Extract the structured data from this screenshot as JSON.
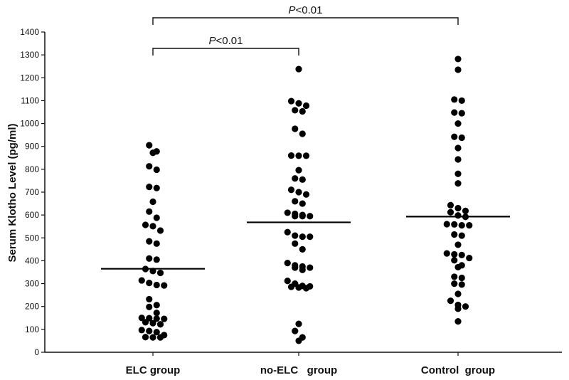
{
  "chart_data": {
    "type": "scatter",
    "ylabel": "Serum Klotho Level (pg/ml)",
    "ylim": [
      0,
      1400
    ],
    "yticks": [
      "0",
      "100",
      "200",
      "300",
      "400",
      "500",
      "600",
      "700",
      "800",
      "900",
      "1000",
      "1100",
      "1200",
      "1300",
      "1400"
    ],
    "categories": [
      "ELC group",
      "no-ELC   group",
      "Control  group"
    ],
    "series": [
      {
        "medians": 365,
        "values": [
          905,
          878,
          872,
          813,
          798,
          723,
          718,
          658,
          615,
          588,
          557,
          551,
          532,
          485,
          475,
          410,
          405,
          364,
          355,
          347,
          314,
          303,
          294,
          292,
          232,
          206,
          198,
          172,
          150,
          149,
          147,
          146,
          131,
          127,
          122,
          97,
          93,
          88,
          75,
          66,
          65,
          65
        ]
      },
      {
        "medians": 568,
        "values": [
          1238,
          1098,
          1088,
          1078,
          1058,
          1053,
          977,
          955,
          860,
          859,
          859,
          796,
          760,
          755,
          710,
          700,
          690,
          660,
          650,
          610,
          605,
          600,
          595,
          595,
          595,
          525,
          510,
          505,
          505,
          475,
          450,
          390,
          380,
          375,
          370,
          370,
          360,
          312,
          300,
          290,
          288,
          286,
          283,
          280,
          124,
          93,
          65,
          50
        ]
      },
      {
        "medians": 593,
        "values": [
          1282,
          1235,
          1105,
          1100,
          1048,
          1045,
          1000,
          942,
          938,
          893,
          843,
          780,
          738,
          643,
          630,
          618,
          612,
          598,
          592,
          560,
          559,
          555,
          555,
          515,
          510,
          470,
          432,
          428,
          425,
          412,
          402,
          380,
          372,
          330,
          325,
          300,
          296,
          255,
          225,
          207,
          200,
          190,
          135
        ]
      }
    ],
    "significance": [
      {
        "from": 0,
        "to": 1,
        "label_italic": "P",
        "label_rest": "<0.01"
      },
      {
        "from": 0,
        "to": 2,
        "label_italic": "P",
        "label_rest": "<0.01"
      }
    ]
  }
}
